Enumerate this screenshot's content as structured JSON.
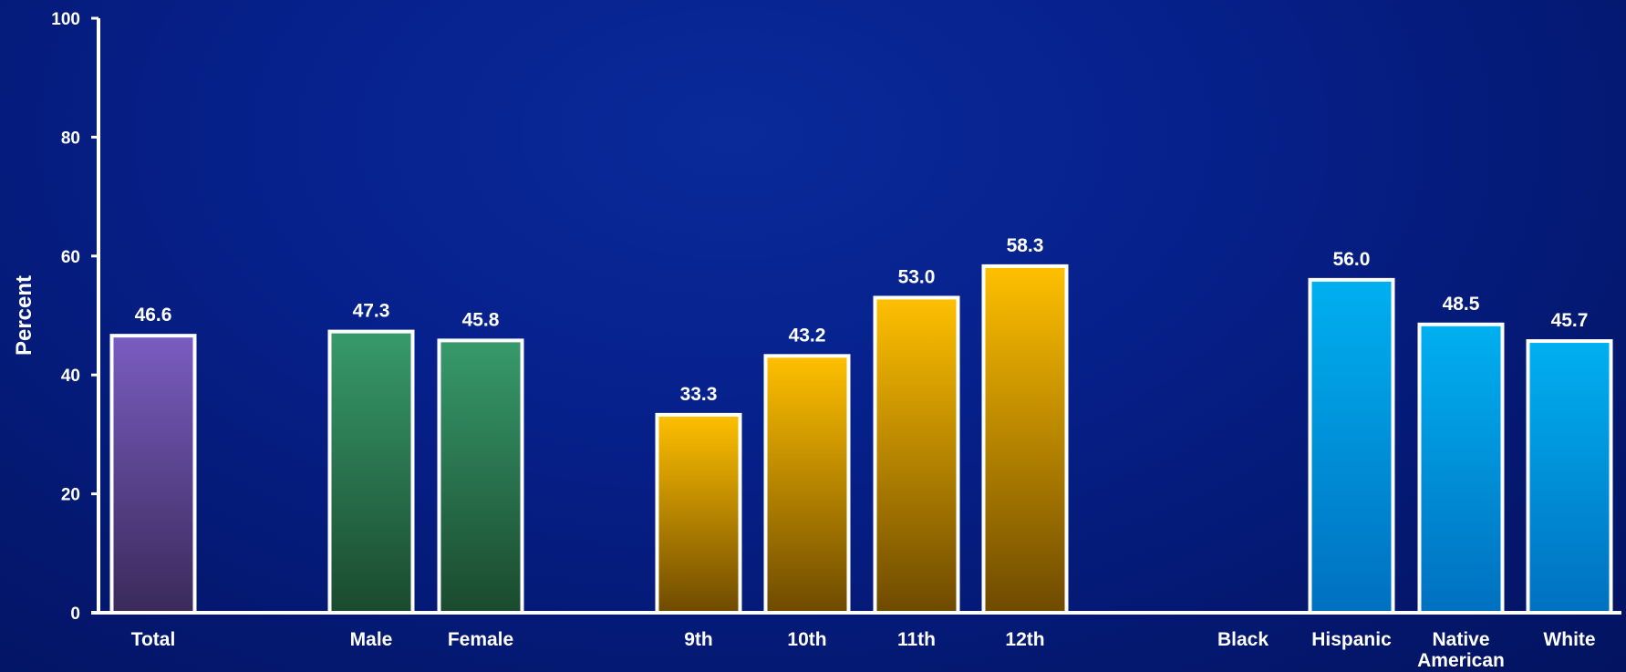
{
  "chart_data": {
    "type": "bar",
    "ylabel": "Percent",
    "xlabel": "",
    "title": "",
    "ylim": [
      0,
      100
    ],
    "yticks": [
      0,
      20,
      40,
      60,
      80,
      100
    ],
    "grid": false,
    "categories": [
      {
        "label": "Total",
        "value": 46.6,
        "value_label": "46.6",
        "group": "total"
      },
      {
        "label": "Male",
        "value": 47.3,
        "value_label": "47.3",
        "group": "sex"
      },
      {
        "label": "Female",
        "value": 45.8,
        "value_label": "45.8",
        "group": "sex"
      },
      {
        "label": "9th",
        "value": 33.3,
        "value_label": "33.3",
        "group": "grade"
      },
      {
        "label": "10th",
        "value": 43.2,
        "value_label": "43.2",
        "group": "grade"
      },
      {
        "label": "11th",
        "value": 53.0,
        "value_label": "53.0",
        "group": "grade"
      },
      {
        "label": "12th",
        "value": 58.3,
        "value_label": "58.3",
        "group": "grade"
      },
      {
        "label": "Black",
        "value": null,
        "value_label": "",
        "group": "race"
      },
      {
        "label": "Hispanic",
        "value": 56.0,
        "value_label": "56.0",
        "group": "race"
      },
      {
        "label": "Native American",
        "value": 48.5,
        "value_label": "48.5",
        "group": "race"
      },
      {
        "label": "White",
        "value": 45.7,
        "value_label": "45.7",
        "group": "race"
      }
    ],
    "group_colors": {
      "total": [
        "#7a5cc0",
        "#3a2a5a"
      ],
      "sex": [
        "#379a6b",
        "#1a4a2e"
      ],
      "grade": [
        "#ffc000",
        "#6e4a00"
      ],
      "race": [
        "#00b0f0",
        "#0070c0"
      ]
    }
  }
}
